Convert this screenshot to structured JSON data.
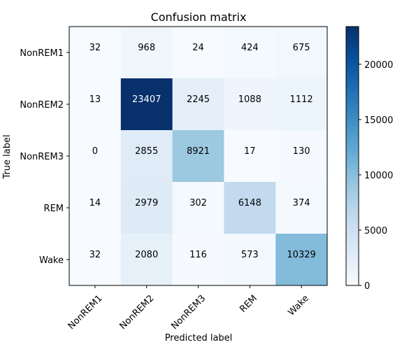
{
  "chart_data": {
    "type": "heatmap",
    "title": "Confusion matrix",
    "xlabel": "Predicted label",
    "ylabel": "True label",
    "x_categories": [
      "NonREM1",
      "NonREM2",
      "NonREM3",
      "REM",
      "Wake"
    ],
    "y_categories": [
      "NonREM1",
      "NonREM2",
      "NonREM3",
      "REM",
      "Wake"
    ],
    "values": [
      [
        32,
        968,
        24,
        424,
        675
      ],
      [
        13,
        23407,
        2245,
        1088,
        1112
      ],
      [
        0,
        2855,
        8921,
        17,
        130
      ],
      [
        14,
        2979,
        302,
        6148,
        374
      ],
      [
        32,
        2080,
        116,
        573,
        10329
      ]
    ],
    "colorbar": {
      "min": 0,
      "max": 23407,
      "ticks": [
        0,
        5000,
        10000,
        15000,
        20000
      ],
      "colormap": "Blues",
      "low_color": "#f7fbff",
      "high_color": "#08306b"
    },
    "cell_text_dark": "#000000",
    "cell_text_light": "#ffffff"
  }
}
